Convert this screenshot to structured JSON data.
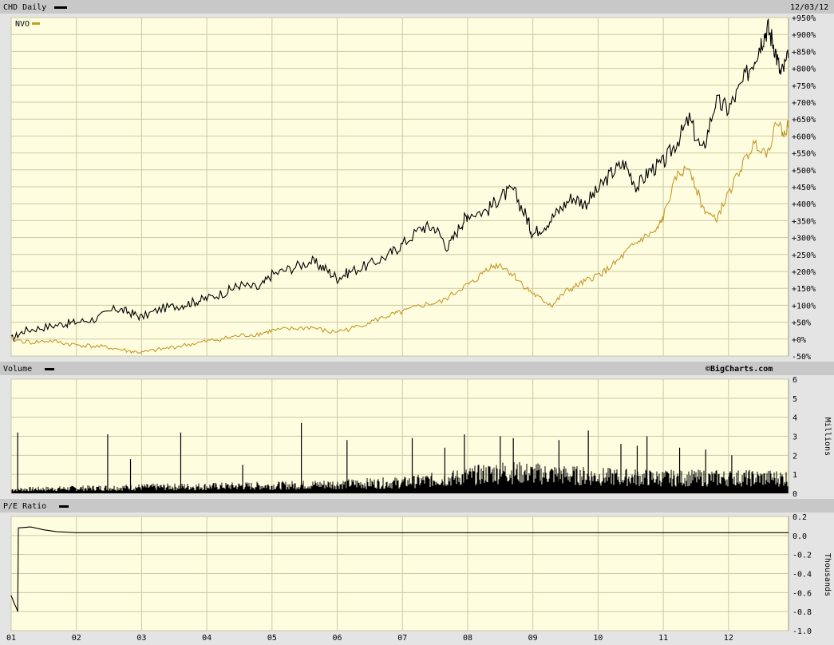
{
  "header": {
    "title": "CHD Daily",
    "date": "12/03/12",
    "watermark": "©BigCharts.com"
  },
  "colors": {
    "background": "#fffde0",
    "grid": "#c9c9a3",
    "header_bar": "#c8c8c8",
    "chd_line": "#000000",
    "nvo_line": "#c49a2a",
    "volume_bar": "#000000",
    "pe_line": "#000000"
  },
  "chart_data": [
    {
      "type": "line",
      "panel": "price",
      "x_labels": [
        "01",
        "02",
        "03",
        "04",
        "05",
        "06",
        "07",
        "08",
        "09",
        "10",
        "11",
        "12"
      ],
      "yticks": [
        "+950%",
        "+900%",
        "+850%",
        "+800%",
        "+750%",
        "+700%",
        "+650%",
        "+600%",
        "+550%",
        "+500%",
        "+450%",
        "+400%",
        "+350%",
        "+300%",
        "+250%",
        "+200%",
        "+150%",
        "+100%",
        "+50%",
        "+0%",
        "-50%"
      ],
      "ylim": [
        -50,
        950
      ],
      "xlim": [
        2001.0,
        2012.92
      ],
      "series": [
        {
          "name": "CHD",
          "x": [
            2001.0,
            2001.2,
            2001.5,
            2001.8,
            2002.0,
            2002.3,
            2002.6,
            2002.8,
            2003.0,
            2003.3,
            2003.6,
            2003.8,
            2004.0,
            2004.3,
            2004.5,
            2004.8,
            2005.0,
            2005.3,
            2005.6,
            2005.8,
            2006.0,
            2006.2,
            2006.5,
            2006.8,
            2007.0,
            2007.3,
            2007.5,
            2007.7,
            2007.9,
            2008.0,
            2008.3,
            2008.5,
            2008.7,
            2008.9,
            2009.0,
            2009.2,
            2009.4,
            2009.6,
            2009.8,
            2010.0,
            2010.2,
            2010.4,
            2010.6,
            2010.8,
            2011.0,
            2011.2,
            2011.4,
            2011.6,
            2011.8,
            2012.0,
            2012.2,
            2012.4,
            2012.5,
            2012.6,
            2012.7,
            2012.8,
            2012.92
          ],
          "values": [
            0,
            25,
            35,
            45,
            50,
            60,
            90,
            80,
            65,
            90,
            100,
            110,
            120,
            140,
            160,
            150,
            190,
            210,
            230,
            210,
            180,
            200,
            220,
            250,
            280,
            330,
            330,
            270,
            340,
            370,
            380,
            420,
            440,
            360,
            310,
            340,
            380,
            420,
            400,
            440,
            490,
            520,
            450,
            500,
            520,
            580,
            650,
            550,
            700,
            680,
            750,
            830,
            880,
            920,
            870,
            780,
            830
          ]
        },
        {
          "name": "NVO",
          "x": [
            2001.0,
            2001.3,
            2001.6,
            2001.9,
            2002.2,
            2002.5,
            2002.8,
            2003.0,
            2003.3,
            2003.6,
            2003.9,
            2004.2,
            2004.5,
            2004.8,
            2005.0,
            2005.3,
            2005.6,
            2005.9,
            2006.2,
            2006.5,
            2006.8,
            2007.0,
            2007.3,
            2007.6,
            2007.9,
            2008.1,
            2008.3,
            2008.5,
            2008.7,
            2008.9,
            2009.1,
            2009.3,
            2009.5,
            2009.7,
            2009.9,
            2010.1,
            2010.3,
            2010.5,
            2010.7,
            2010.9,
            2011.0,
            2011.2,
            2011.4,
            2011.6,
            2011.8,
            2012.0,
            2012.2,
            2012.4,
            2012.6,
            2012.75,
            2012.85,
            2012.92
          ],
          "values": [
            0,
            -10,
            -5,
            -15,
            -20,
            -25,
            -35,
            -40,
            -30,
            -20,
            -10,
            0,
            10,
            15,
            25,
            30,
            35,
            20,
            30,
            50,
            70,
            80,
            100,
            110,
            150,
            170,
            210,
            220,
            190,
            150,
            120,
            100,
            140,
            160,
            180,
            200,
            230,
            270,
            300,
            320,
            360,
            480,
            510,
            390,
            350,
            430,
            510,
            580,
            550,
            650,
            600,
            640
          ]
        }
      ]
    },
    {
      "type": "bar",
      "panel": "volume",
      "title": "Volume",
      "ylabel": "Millions",
      "yticks": [
        "6",
        "5",
        "4",
        "3",
        "2",
        "1",
        "0"
      ],
      "ylim": [
        0,
        6
      ],
      "spikes": [
        {
          "x": 2001.1,
          "value": 3.2
        },
        {
          "x": 2002.48,
          "value": 3.1
        },
        {
          "x": 2002.83,
          "value": 1.8
        },
        {
          "x": 2003.6,
          "value": 3.2
        },
        {
          "x": 2004.55,
          "value": 1.5
        },
        {
          "x": 2005.45,
          "value": 3.7
        },
        {
          "x": 2006.15,
          "value": 2.8
        },
        {
          "x": 2007.15,
          "value": 2.9
        },
        {
          "x": 2007.65,
          "value": 2.4
        },
        {
          "x": 2007.95,
          "value": 3.1
        },
        {
          "x": 2008.5,
          "value": 3.0
        },
        {
          "x": 2008.7,
          "value": 2.9
        },
        {
          "x": 2009.4,
          "value": 2.8
        },
        {
          "x": 2009.85,
          "value": 3.3
        },
        {
          "x": 2010.35,
          "value": 2.6
        },
        {
          "x": 2010.6,
          "value": 2.5
        },
        {
          "x": 2010.75,
          "value": 3.0
        },
        {
          "x": 2011.25,
          "value": 2.4
        },
        {
          "x": 2011.65,
          "value": 2.3
        },
        {
          "x": 2012.05,
          "value": 2.0
        }
      ],
      "baseline": [
        {
          "x": 2001.0,
          "value": 0.25
        },
        {
          "x": 2003.0,
          "value": 0.4
        },
        {
          "x": 2005.0,
          "value": 0.5
        },
        {
          "x": 2007.0,
          "value": 0.7
        },
        {
          "x": 2007.8,
          "value": 1.0
        },
        {
          "x": 2008.5,
          "value": 1.4
        },
        {
          "x": 2009.0,
          "value": 1.3
        },
        {
          "x": 2010.0,
          "value": 1.1
        },
        {
          "x": 2011.0,
          "value": 1.0
        },
        {
          "x": 2012.92,
          "value": 1.0
        }
      ]
    },
    {
      "type": "line",
      "panel": "pe_ratio",
      "title": "P/E Ratio",
      "ylabel": "Thousands",
      "yticks": [
        "0.2",
        "0.0",
        "-0.2",
        "-0.4",
        "-0.6",
        "-0.8",
        "-1.0"
      ],
      "ylim": [
        -1.0,
        0.2
      ],
      "series": [
        {
          "name": "P/E",
          "x": [
            2000.98,
            2001.05,
            2001.08,
            2001.1,
            2001.11,
            2001.3,
            2001.5,
            2001.7,
            2002.0,
            2003.0,
            2004.0,
            2005.0,
            2006.0,
            2007.0,
            2008.0,
            2009.0,
            2010.0,
            2011.0,
            2012.0,
            2012.92
          ],
          "values": [
            -0.63,
            -0.72,
            -0.76,
            -0.8,
            0.08,
            0.09,
            0.06,
            0.04,
            0.03,
            0.03,
            0.03,
            0.03,
            0.03,
            0.03,
            0.03,
            0.03,
            0.03,
            0.03,
            0.03,
            0.03
          ]
        }
      ]
    }
  ],
  "legend": {
    "chd": "CHD Daily",
    "nvo": "NVO",
    "volume": "Volume",
    "pe": "P/E Ratio"
  }
}
